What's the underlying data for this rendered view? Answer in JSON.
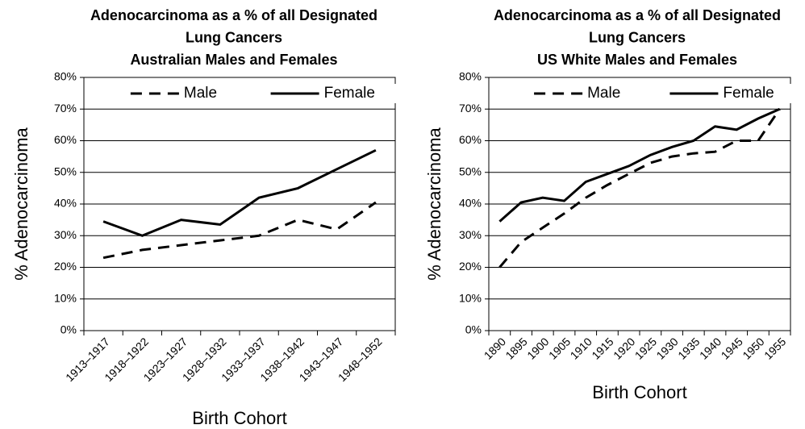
{
  "chart_data": [
    {
      "type": "line",
      "title": [
        "Adenocarcinoma as a % of all Designated",
        "Lung Cancers",
        "Australian Males and Females"
      ],
      "xlabel": "Birth Cohort",
      "ylabel": "% Adenocarcinoma",
      "categories": [
        "1913–1917",
        "1918–1922",
        "1923–1927",
        "1928–1932",
        "1933–1937",
        "1938–1942",
        "1943–1947",
        "1948–1952"
      ],
      "series": [
        {
          "name": "Male",
          "color": "#000000",
          "style": "dashed",
          "values": [
            23,
            25.5,
            27,
            28.5,
            30,
            35,
            32,
            40.5
          ]
        },
        {
          "name": "Female",
          "color": "#000000",
          "style": "solid",
          "values": [
            34.5,
            30,
            35,
            33.5,
            42,
            45,
            51,
            57
          ]
        }
      ],
      "ylim": [
        0,
        80
      ],
      "yticks": [
        {
          "value": 0,
          "label": "0%"
        },
        {
          "value": 10,
          "label": "10%"
        },
        {
          "value": 20,
          "label": "20%"
        },
        {
          "value": 30,
          "label": "30%"
        },
        {
          "value": 40,
          "label": "40%"
        },
        {
          "value": 50,
          "label": "50%"
        },
        {
          "value": 60,
          "label": "60%"
        },
        {
          "value": 70,
          "label": "70%"
        },
        {
          "value": 80,
          "label": "80%"
        }
      ],
      "grid": true,
      "legend": "top"
    },
    {
      "type": "line",
      "title": [
        "Adenocarcinoma as a % of all Designated",
        "Lung Cancers",
        "US  White Males and Females"
      ],
      "xlabel": "Birth Cohort",
      "ylabel": "% Adenocarcinoma",
      "categories": [
        "1890",
        "1895",
        "1900",
        "1905",
        "1910",
        "1915",
        "1920",
        "1925",
        "1930",
        "1935",
        "1940",
        "1945",
        "1950",
        "1955"
      ],
      "series": [
        {
          "name": "Male",
          "color": "#000000",
          "style": "dashed",
          "values": [
            20,
            28,
            32.5,
            37,
            42,
            46,
            49.5,
            53,
            55,
            56,
            56.5,
            60,
            60,
            70
          ]
        },
        {
          "name": "Female",
          "color": "#000000",
          "style": "solid",
          "values": [
            34.5,
            40.5,
            42,
            41,
            47,
            49.5,
            52,
            55.5,
            58,
            60,
            64.5,
            63.5,
            67,
            70
          ]
        }
      ],
      "ylim": [
        0,
        80
      ],
      "yticks": [
        {
          "value": 0,
          "label": "0%"
        },
        {
          "value": 10,
          "label": "10%"
        },
        {
          "value": 20,
          "label": "20%"
        },
        {
          "value": 30,
          "label": "30%"
        },
        {
          "value": 40,
          "label": "40%"
        },
        {
          "value": 50,
          "label": "50%"
        },
        {
          "value": 60,
          "label": "60%"
        },
        {
          "value": 70,
          "label": "70%"
        },
        {
          "value": 80,
          "label": "80%"
        }
      ],
      "grid": true,
      "legend": "top"
    }
  ]
}
